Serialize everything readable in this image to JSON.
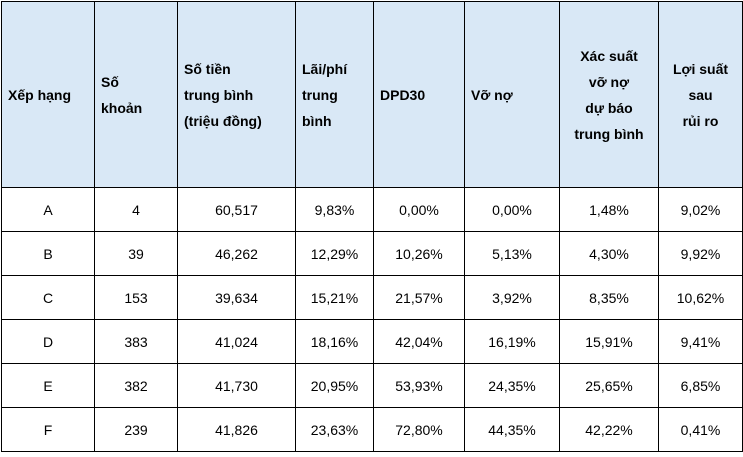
{
  "table": {
    "headers": [
      {
        "key": "rank",
        "lines": [
          "Xếp hạng"
        ]
      },
      {
        "key": "count",
        "lines": [
          "Số",
          "khoản"
        ]
      },
      {
        "key": "avg_amount",
        "lines": [
          "Số tiền",
          "trung bình",
          "(triệu đồng)"
        ]
      },
      {
        "key": "avg_rate",
        "lines": [
          "Lãi/phí",
          "trung",
          "bình"
        ]
      },
      {
        "key": "dpd30",
        "lines": [
          "DPD30"
        ]
      },
      {
        "key": "default",
        "lines": [
          "Vỡ nợ"
        ]
      },
      {
        "key": "pred_default",
        "lines": [
          "Xác suất",
          "vỡ nợ",
          "dự báo",
          "trung bình"
        ]
      },
      {
        "key": "risk_yield",
        "lines": [
          "Lợi suất",
          "sau",
          "rủi ro"
        ]
      }
    ],
    "rows": [
      [
        "A",
        "4",
        "60,517",
        "9,83%",
        "0,00%",
        "0,00%",
        "1,48%",
        "9,02%"
      ],
      [
        "B",
        "39",
        "46,262",
        "12,29%",
        "10,26%",
        "5,13%",
        "4,30%",
        "9,92%"
      ],
      [
        "C",
        "153",
        "39,634",
        "15,21%",
        "21,57%",
        "3,92%",
        "8,35%",
        "10,62%"
      ],
      [
        "D",
        "383",
        "41,024",
        "18,16%",
        "42,04%",
        "16,19%",
        "15,91%",
        "9,41%"
      ],
      [
        "E",
        "382",
        "41,730",
        "20,95%",
        "53,93%",
        "24,35%",
        "25,65%",
        "6,85%"
      ],
      [
        "F",
        "239",
        "41,826",
        "23,63%",
        "72,80%",
        "44,35%",
        "42,22%",
        "0,41%"
      ]
    ]
  }
}
